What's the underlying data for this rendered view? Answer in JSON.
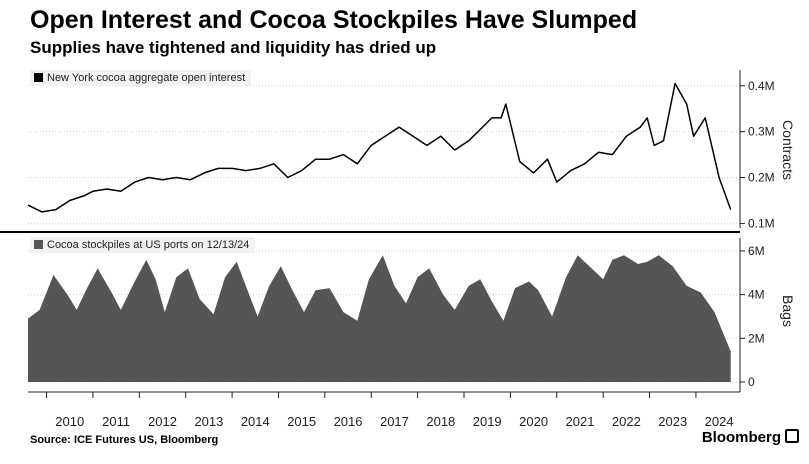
{
  "title": "Open Interest and Cocoa Stockpiles Have Slumped",
  "subtitle": "Supplies have tightened and liquidity has dried up",
  "source": "Source: ICE Futures US, Bloomberg",
  "brand": "Bloomberg",
  "colors": {
    "line": "#000000",
    "area": "#555555",
    "grid": "#d0d0d0"
  },
  "chart_data": [
    {
      "type": "line",
      "legend": "New York cocoa aggregate open interest",
      "ylabel": "Contracts",
      "ylim": [
        0.09,
        0.43
      ],
      "yticks": [
        0.1,
        0.2,
        0.3,
        0.4
      ],
      "ytick_labels": [
        "0.1M",
        "0.2M",
        "0.3M",
        "0.4M"
      ],
      "xlim": [
        2009.6,
        2024.95
      ],
      "x_tick_labels": [
        "2010",
        "2011",
        "2012",
        "2013",
        "2014",
        "2015",
        "2016",
        "2017",
        "2018",
        "2019",
        "2020",
        "2021",
        "2022",
        "2023",
        "2024"
      ],
      "x": [
        2009.6,
        2009.9,
        2010.2,
        2010.5,
        2010.8,
        2011.0,
        2011.3,
        2011.6,
        2011.9,
        2012.2,
        2012.5,
        2012.8,
        2013.1,
        2013.4,
        2013.7,
        2014.0,
        2014.3,
        2014.6,
        2014.9,
        2015.2,
        2015.5,
        2015.8,
        2016.1,
        2016.4,
        2016.7,
        2017.0,
        2017.3,
        2017.6,
        2017.9,
        2018.2,
        2018.5,
        2018.8,
        2019.1,
        2019.4,
        2019.6,
        2019.8,
        2019.9,
        2020.2,
        2020.5,
        2020.8,
        2021.0,
        2021.3,
        2021.6,
        2021.9,
        2022.2,
        2022.5,
        2022.8,
        2022.95,
        2023.1,
        2023.3,
        2023.55,
        2023.8,
        2023.95,
        2024.2,
        2024.5,
        2024.75
      ],
      "y": [
        0.14,
        0.125,
        0.13,
        0.15,
        0.16,
        0.17,
        0.175,
        0.17,
        0.19,
        0.2,
        0.195,
        0.2,
        0.195,
        0.21,
        0.22,
        0.22,
        0.215,
        0.22,
        0.23,
        0.2,
        0.215,
        0.24,
        0.24,
        0.25,
        0.23,
        0.27,
        0.29,
        0.31,
        0.29,
        0.27,
        0.29,
        0.26,
        0.28,
        0.31,
        0.33,
        0.33,
        0.36,
        0.235,
        0.21,
        0.24,
        0.19,
        0.215,
        0.23,
        0.255,
        0.25,
        0.29,
        0.31,
        0.33,
        0.27,
        0.28,
        0.405,
        0.36,
        0.29,
        0.33,
        0.2,
        0.13
      ]
    },
    {
      "type": "area",
      "legend": "Cocoa stockpiles at US ports on 12/13/24",
      "ylabel": "Bags",
      "ylim": [
        0,
        6.5
      ],
      "yticks": [
        0,
        2,
        4,
        6
      ],
      "ytick_labels": [
        "0",
        "2M",
        "4M",
        "6M"
      ],
      "xlim": [
        2009.6,
        2024.95
      ],
      "x_tick_labels": [
        "2010",
        "2011",
        "2012",
        "2013",
        "2014",
        "2015",
        "2016",
        "2017",
        "2018",
        "2019",
        "2020",
        "2021",
        "2022",
        "2023",
        "2024"
      ],
      "x": [
        2009.6,
        2009.85,
        2010.15,
        2010.45,
        2010.65,
        2010.85,
        2011.1,
        2011.4,
        2011.6,
        2011.9,
        2012.15,
        2012.35,
        2012.55,
        2012.8,
        2013.05,
        2013.3,
        2013.6,
        2013.85,
        2014.1,
        2014.35,
        2014.55,
        2014.8,
        2015.05,
        2015.3,
        2015.55,
        2015.8,
        2016.1,
        2016.4,
        2016.7,
        2016.95,
        2017.25,
        2017.5,
        2017.75,
        2018.0,
        2018.25,
        2018.55,
        2018.8,
        2019.1,
        2019.35,
        2019.6,
        2019.85,
        2020.1,
        2020.4,
        2020.6,
        2020.9,
        2021.2,
        2021.45,
        2021.75,
        2022.0,
        2022.2,
        2022.45,
        2022.75,
        2022.95,
        2023.2,
        2023.5,
        2023.8,
        2024.1,
        2024.4,
        2024.75
      ],
      "y": [
        2.9,
        3.3,
        4.9,
        4.0,
        3.3,
        4.2,
        5.2,
        4.1,
        3.3,
        4.6,
        5.6,
        4.7,
        3.2,
        4.8,
        5.2,
        3.8,
        3.1,
        4.8,
        5.5,
        4.1,
        3.0,
        4.4,
        5.3,
        4.2,
        3.2,
        4.2,
        4.3,
        3.2,
        2.8,
        4.7,
        5.8,
        4.4,
        3.6,
        4.8,
        5.2,
        4.0,
        3.3,
        4.4,
        4.7,
        3.7,
        2.8,
        4.3,
        4.6,
        4.2,
        3.0,
        4.8,
        5.8,
        5.2,
        4.7,
        5.6,
        5.8,
        5.4,
        5.5,
        5.8,
        5.3,
        4.4,
        4.1,
        3.2,
        1.4
      ]
    }
  ]
}
